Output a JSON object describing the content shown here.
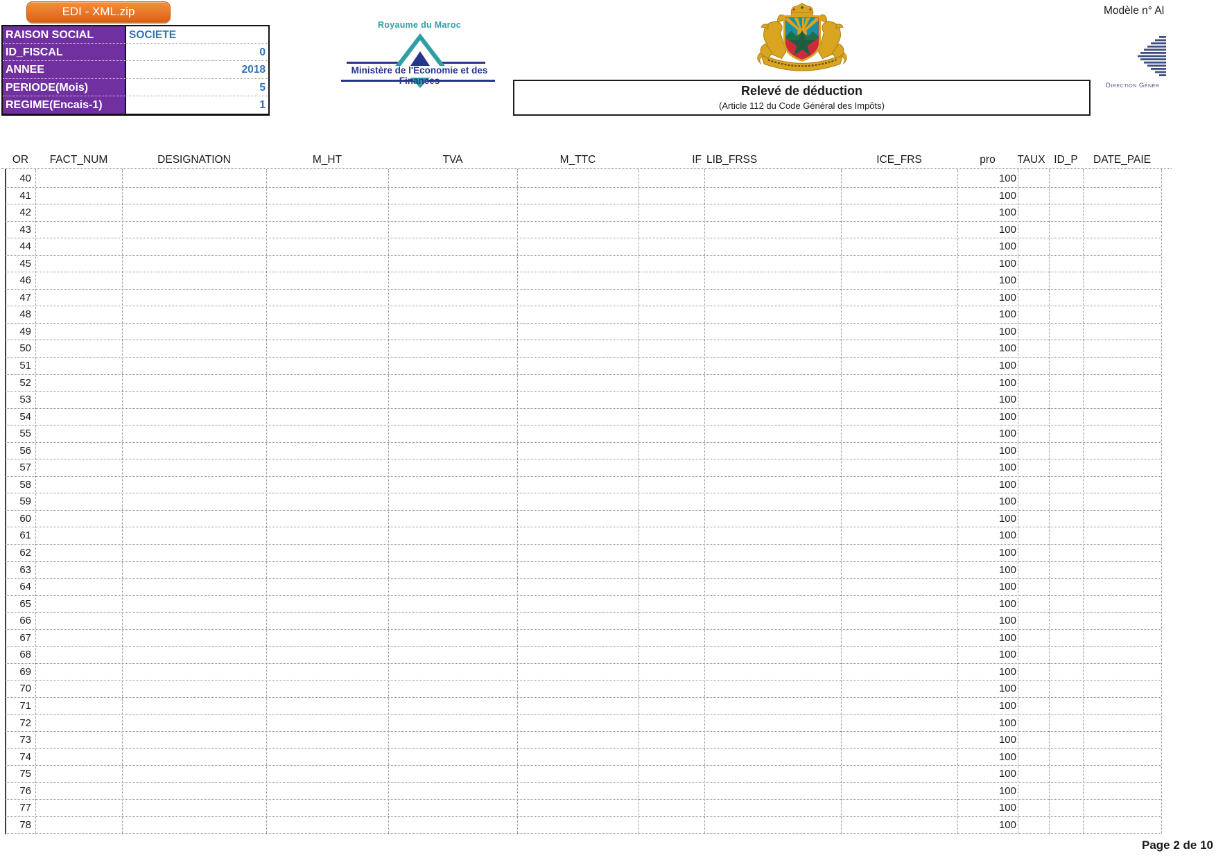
{
  "header": {
    "edi_button_label": "EDI - XML.zip",
    "modele_label": "Modèle n° Al",
    "info_table": {
      "rows": [
        {
          "label": "RAISON SOCIAL",
          "value": "SOCIETE",
          "align": "left"
        },
        {
          "label": "ID_FISCAL",
          "value": "0",
          "align": "right"
        },
        {
          "label": "ANNEE",
          "value": "2018",
          "align": "right"
        },
        {
          "label": "PERIODE(Mois)",
          "value": "5",
          "align": "right"
        },
        {
          "label": "REGIME(Encais-1)",
          "value": "1",
          "align": "right"
        }
      ]
    },
    "ministry_logo": {
      "country_label": "Royaume du Maroc",
      "ministry_label": "Ministère de l'Economie et des Finances"
    },
    "coat_of_arms_icon": "moroccan-royal-coat-of-arms",
    "dgi_logo": {
      "icon": "striped-left-arrow",
      "caption": "Direction Génér"
    },
    "title_box": {
      "title": "Relevé de déduction",
      "subtitle": "(Article 112 du Code Général des Impôts)"
    }
  },
  "table": {
    "columns": [
      {
        "key": "or",
        "label": "OR"
      },
      {
        "key": "fact_num",
        "label": "FACT_NUM"
      },
      {
        "key": "designation",
        "label": "DESIGNATION"
      },
      {
        "key": "m_ht",
        "label": "M_HT"
      },
      {
        "key": "tva",
        "label": "TVA"
      },
      {
        "key": "m_ttc",
        "label": "M_TTC"
      },
      {
        "key": "if",
        "label": "IF"
      },
      {
        "key": "lib_frss",
        "label": "LIB_FRSS"
      },
      {
        "key": "ice_frs",
        "label": "ICE_FRS"
      },
      {
        "key": "pro",
        "label": "pro"
      },
      {
        "key": "taux",
        "label": "TAUX"
      },
      {
        "key": "id_p",
        "label": "ID_P"
      },
      {
        "key": "date_paie",
        "label": "DATE_PAIE"
      }
    ],
    "rows": [
      {
        "or": "40",
        "pro": "100"
      },
      {
        "or": "41",
        "pro": "100"
      },
      {
        "or": "42",
        "pro": "100"
      },
      {
        "or": "43",
        "pro": "100"
      },
      {
        "or": "44",
        "pro": "100"
      },
      {
        "or": "45",
        "pro": "100"
      },
      {
        "or": "46",
        "pro": "100"
      },
      {
        "or": "47",
        "pro": "100"
      },
      {
        "or": "48",
        "pro": "100"
      },
      {
        "or": "49",
        "pro": "100"
      },
      {
        "or": "50",
        "pro": "100"
      },
      {
        "or": "51",
        "pro": "100"
      },
      {
        "or": "52",
        "pro": "100"
      },
      {
        "or": "53",
        "pro": "100"
      },
      {
        "or": "54",
        "pro": "100"
      },
      {
        "or": "55",
        "pro": "100"
      },
      {
        "or": "56",
        "pro": "100"
      },
      {
        "or": "57",
        "pro": "100"
      },
      {
        "or": "58",
        "pro": "100"
      },
      {
        "or": "59",
        "pro": "100"
      },
      {
        "or": "60",
        "pro": "100"
      },
      {
        "or": "61",
        "pro": "100"
      },
      {
        "or": "62",
        "pro": "100"
      },
      {
        "or": "63",
        "pro": "100"
      },
      {
        "or": "64",
        "pro": "100"
      },
      {
        "or": "65",
        "pro": "100"
      },
      {
        "or": "66",
        "pro": "100"
      },
      {
        "or": "67",
        "pro": "100"
      },
      {
        "or": "68",
        "pro": "100"
      },
      {
        "or": "69",
        "pro": "100"
      },
      {
        "or": "70",
        "pro": "100"
      },
      {
        "or": "71",
        "pro": "100"
      },
      {
        "or": "72",
        "pro": "100"
      },
      {
        "or": "73",
        "pro": "100"
      },
      {
        "or": "74",
        "pro": "100"
      },
      {
        "or": "75",
        "pro": "100"
      },
      {
        "or": "76",
        "pro": "100"
      },
      {
        "or": "77",
        "pro": "100"
      },
      {
        "or": "78",
        "pro": "100"
      }
    ]
  },
  "footer": {
    "page_label": "Page 2 de 10"
  },
  "colors": {
    "accent_orange": "#E8762A",
    "purple_header": "#7030A0",
    "value_blue": "#2E74B5",
    "teal_logo": "#2E9FA5",
    "navy_logo": "#27348B",
    "dgi_navy": "#3D4E82",
    "grid_dotted": "#8A8A8A",
    "coa_gold": "#D9A520",
    "coa_red": "#CE2A3B",
    "coa_teal": "#1B8FA3",
    "coa_green": "#1F5D40"
  }
}
